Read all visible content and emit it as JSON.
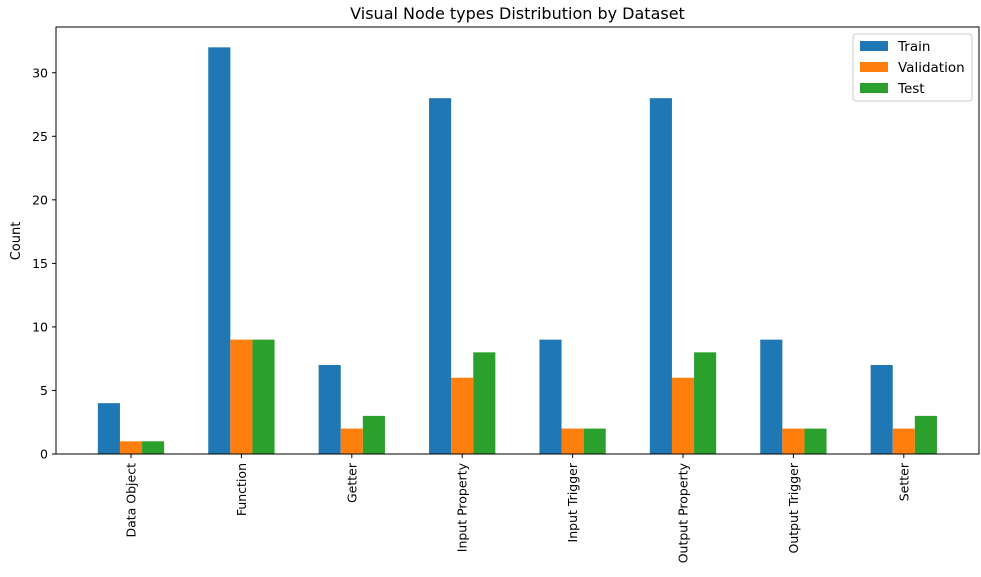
{
  "chart_data": {
    "type": "bar",
    "title": "Visual Node types Distribution by Dataset",
    "xlabel": "",
    "ylabel": "Count",
    "ylim": [
      0,
      33.6
    ],
    "yticks": [
      0,
      5,
      10,
      15,
      20,
      25,
      30
    ],
    "grid": false,
    "legend_position": "top-right",
    "categories": [
      "Data Object",
      "Function",
      "Getter",
      "Input Property",
      "Input Trigger",
      "Output Property",
      "Output Trigger",
      "Setter"
    ],
    "series": [
      {
        "name": "Train",
        "color": "#1f77b4",
        "values": [
          4,
          32,
          7,
          28,
          9,
          28,
          9,
          7
        ]
      },
      {
        "name": "Validation",
        "color": "#ff7f0e",
        "values": [
          1,
          9,
          2,
          6,
          2,
          6,
          2,
          2
        ]
      },
      {
        "name": "Test",
        "color": "#2ca02c",
        "values": [
          1,
          9,
          3,
          8,
          2,
          8,
          2,
          3
        ]
      }
    ]
  }
}
